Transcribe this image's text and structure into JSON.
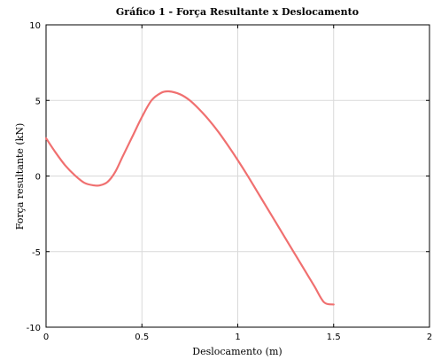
{
  "chart_data": {
    "type": "line",
    "title": "Gráfico 1 - Força Resultante x Deslocamento",
    "xlabel": "Deslocamento (m)",
    "ylabel": "Força resultante (kN)",
    "xlim": [
      0,
      2
    ],
    "ylim": [
      -10,
      10
    ],
    "xticks": [
      0,
      0.5,
      1,
      1.5,
      2
    ],
    "xtick_labels": [
      "0",
      "0.5",
      "1",
      "1.5",
      "2"
    ],
    "yticks": [
      -10,
      -5,
      0,
      5,
      10
    ],
    "ytick_labels": [
      "-10",
      "-5",
      "0",
      "5",
      "10"
    ],
    "grid": true,
    "series": [
      {
        "color": "#f07070",
        "x": [
          0,
          0.05,
          0.1,
          0.15,
          0.2,
          0.25,
          0.28,
          0.32,
          0.36,
          0.4,
          0.45,
          0.5,
          0.55,
          0.6,
          0.64,
          0.7,
          0.75,
          0.8,
          0.85,
          0.9,
          0.95,
          1.0,
          1.05,
          1.1,
          1.15,
          1.2,
          1.25,
          1.3,
          1.35,
          1.4,
          1.45,
          1.5
        ],
        "y": [
          2.5,
          1.55,
          0.7,
          0.05,
          -0.45,
          -0.62,
          -0.62,
          -0.4,
          0.25,
          1.3,
          2.6,
          3.9,
          5.0,
          5.5,
          5.6,
          5.4,
          5.0,
          4.4,
          3.7,
          2.9,
          2.0,
          1.05,
          0.05,
          -1.0,
          -2.05,
          -3.1,
          -4.15,
          -5.2,
          -6.25,
          -7.3,
          -8.35,
          -8.5
        ]
      }
    ]
  }
}
